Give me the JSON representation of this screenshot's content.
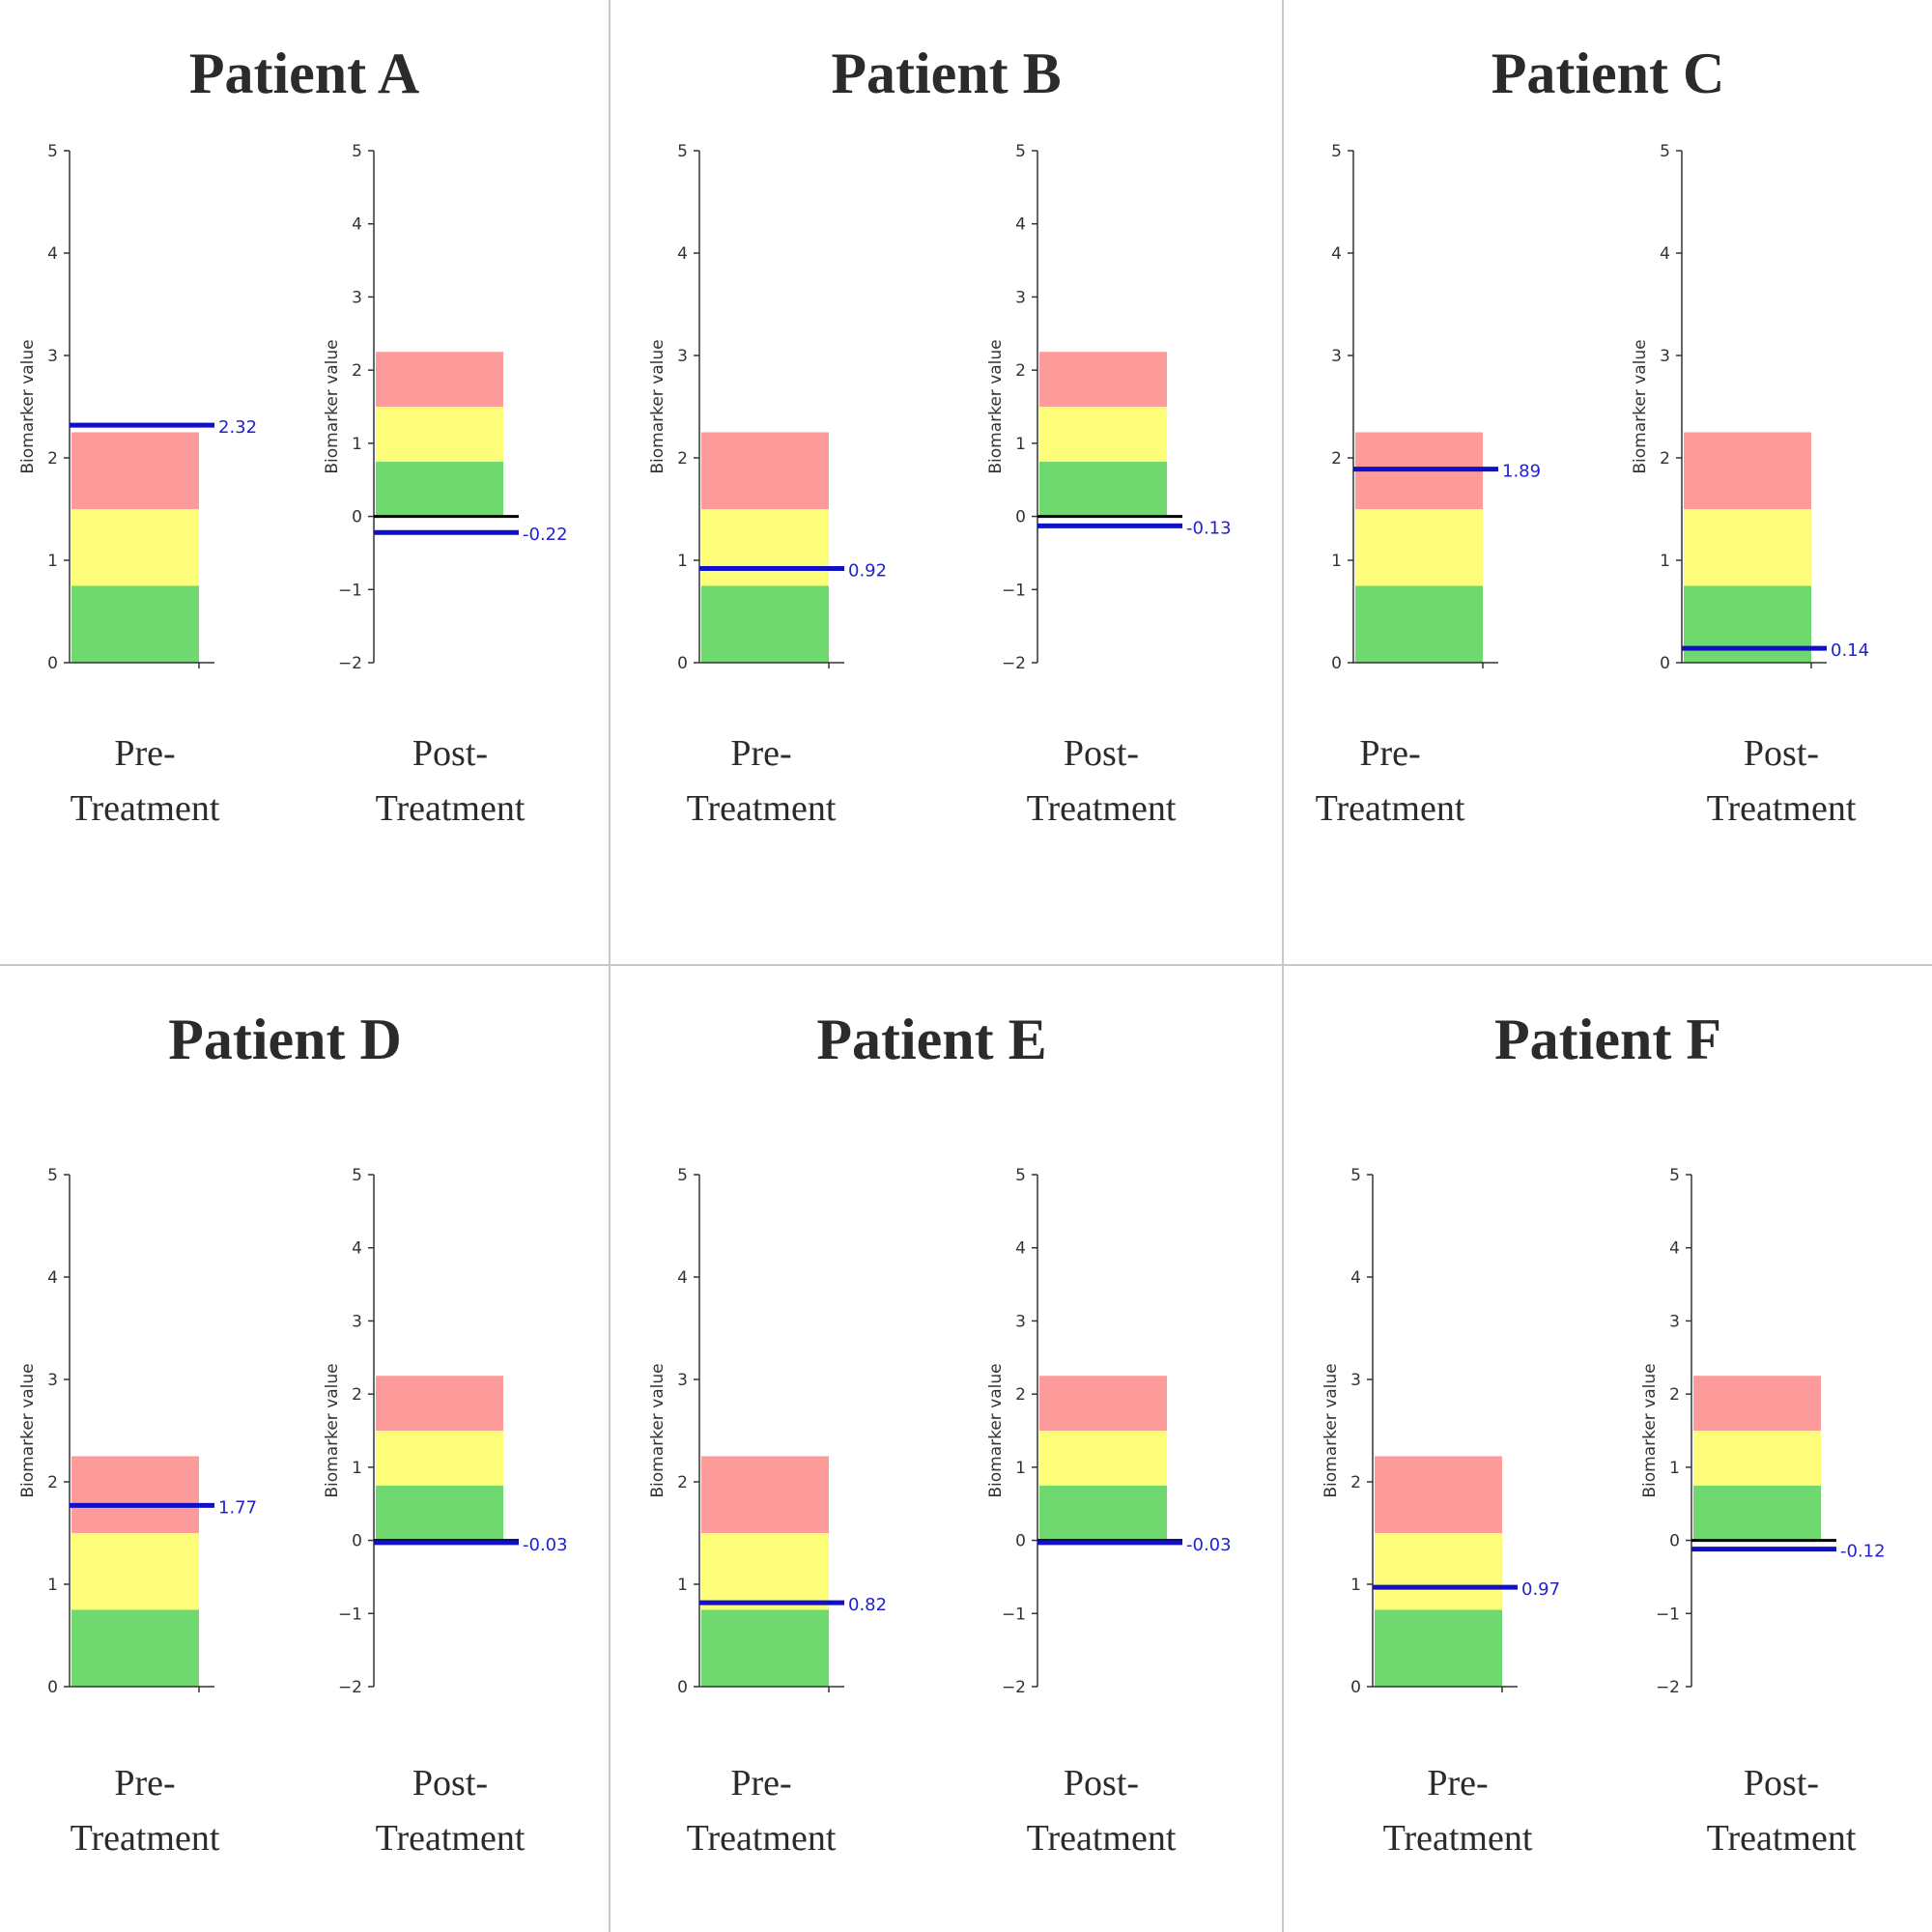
{
  "colors": {
    "green_zone": "#6fd96f",
    "yellow_zone": "#fdfd7a",
    "red_zone": "#fd9a9a",
    "value_line": "#1010c8",
    "value_label": "#2222cc",
    "zero_line": "#000000",
    "axis": "#333333"
  },
  "chart_data": [
    {
      "type": "bar",
      "patient": "Patient A",
      "phase": "Pre-Treatment",
      "category_line1": "Pre-",
      "category_line2": "Treatment",
      "ylabel": "Biomarker value",
      "ylim": [
        0,
        5
      ],
      "yticks": [
        0,
        1,
        2,
        3,
        4,
        5
      ],
      "zones": [
        {
          "color": "green",
          "from": 0,
          "to": 0.75
        },
        {
          "color": "yellow",
          "from": 0.75,
          "to": 1.5
        },
        {
          "color": "red",
          "from": 1.5,
          "to": 2.25
        }
      ],
      "value": 2.32,
      "value_label": "2.32"
    },
    {
      "type": "bar",
      "patient": "Patient A",
      "phase": "Post-Treatment",
      "category_line1": "Post-",
      "category_line2": "Treatment",
      "ylabel": "Biomarker value",
      "ylim": [
        -2,
        5
      ],
      "yticks": [
        -2,
        -1,
        0,
        1,
        2,
        3,
        4,
        5
      ],
      "zones": [
        {
          "color": "green",
          "from": 0,
          "to": 0.75
        },
        {
          "color": "yellow",
          "from": 0.75,
          "to": 1.5
        },
        {
          "color": "red",
          "from": 1.5,
          "to": 2.25
        }
      ],
      "value": -0.22,
      "value_label": "-0.22"
    },
    {
      "type": "bar",
      "patient": "Patient B",
      "phase": "Pre-Treatment",
      "category_line1": "Pre-",
      "category_line2": "Treatment",
      "ylabel": "Biomarker value",
      "ylim": [
        0,
        5
      ],
      "yticks": [
        0,
        1,
        2,
        3,
        4,
        5
      ],
      "zones": [
        {
          "color": "green",
          "from": 0,
          "to": 0.75
        },
        {
          "color": "yellow",
          "from": 0.75,
          "to": 1.5
        },
        {
          "color": "red",
          "from": 1.5,
          "to": 2.25
        }
      ],
      "value": 0.92,
      "value_label": "0.92"
    },
    {
      "type": "bar",
      "patient": "Patient B",
      "phase": "Post-Treatment",
      "category_line1": "Post-",
      "category_line2": "Treatment",
      "ylabel": "Biomarker value",
      "ylim": [
        -2,
        5
      ],
      "yticks": [
        -2,
        -1,
        0,
        1,
        2,
        3,
        4,
        5
      ],
      "zones": [
        {
          "color": "green",
          "from": 0,
          "to": 0.75
        },
        {
          "color": "yellow",
          "from": 0.75,
          "to": 1.5
        },
        {
          "color": "red",
          "from": 1.5,
          "to": 2.25
        }
      ],
      "value": -0.13,
      "value_label": "-0.13"
    },
    {
      "type": "bar",
      "patient": "Patient C",
      "phase": "Pre-Treatment",
      "category_line1": "Pre-",
      "category_line2": "Treatment",
      "ylabel": "",
      "ylim": [
        0,
        5
      ],
      "yticks": [
        0,
        1,
        2,
        3,
        4,
        5
      ],
      "zones": [
        {
          "color": "green",
          "from": 0,
          "to": 0.75
        },
        {
          "color": "yellow",
          "from": 0.75,
          "to": 1.5
        },
        {
          "color": "red",
          "from": 1.5,
          "to": 2.25
        }
      ],
      "value": 1.89,
      "value_label": "1.89"
    },
    {
      "type": "bar",
      "patient": "Patient C",
      "phase": "Post-Treatment",
      "category_line1": "Post-",
      "category_line2": "Treatment",
      "ylabel": "Biomarker value",
      "ylim": [
        0,
        5
      ],
      "yticks": [
        0,
        1,
        2,
        3,
        4,
        5
      ],
      "zones": [
        {
          "color": "green",
          "from": 0,
          "to": 0.75
        },
        {
          "color": "yellow",
          "from": 0.75,
          "to": 1.5
        },
        {
          "color": "red",
          "from": 1.5,
          "to": 2.25
        }
      ],
      "value": 0.14,
      "value_label": "0.14"
    },
    {
      "type": "bar",
      "patient": "Patient D",
      "phase": "Pre-Treatment",
      "category_line1": "Pre-",
      "category_line2": "Treatment",
      "ylabel": "Biomarker value",
      "ylim": [
        0,
        5
      ],
      "yticks": [
        0,
        1,
        2,
        3,
        4,
        5
      ],
      "zones": [
        {
          "color": "green",
          "from": 0,
          "to": 0.75
        },
        {
          "color": "yellow",
          "from": 0.75,
          "to": 1.5
        },
        {
          "color": "red",
          "from": 1.5,
          "to": 2.25
        }
      ],
      "value": 1.77,
      "value_label": "1.77"
    },
    {
      "type": "bar",
      "patient": "Patient D",
      "phase": "Post-Treatment",
      "category_line1": "Post-",
      "category_line2": "Treatment",
      "ylabel": "Biomarker value",
      "ylim": [
        -2,
        5
      ],
      "yticks": [
        -2,
        -1,
        0,
        1,
        2,
        3,
        4,
        5
      ],
      "zones": [
        {
          "color": "green",
          "from": 0,
          "to": 0.75
        },
        {
          "color": "yellow",
          "from": 0.75,
          "to": 1.5
        },
        {
          "color": "red",
          "from": 1.5,
          "to": 2.25
        }
      ],
      "value": -0.03,
      "value_label": "-0.03"
    },
    {
      "type": "bar",
      "patient": "Patient E",
      "phase": "Pre-Treatment",
      "category_line1": "Pre-",
      "category_line2": "Treatment",
      "ylabel": "Biomarker value",
      "ylim": [
        0,
        5
      ],
      "yticks": [
        0,
        1,
        2,
        3,
        4,
        5
      ],
      "zones": [
        {
          "color": "green",
          "from": 0,
          "to": 0.75
        },
        {
          "color": "yellow",
          "from": 0.75,
          "to": 1.5
        },
        {
          "color": "red",
          "from": 1.5,
          "to": 2.25
        }
      ],
      "value": 0.82,
      "value_label": "0.82"
    },
    {
      "type": "bar",
      "patient": "Patient E",
      "phase": "Post-Treatment",
      "category_line1": "Post-",
      "category_line2": "Treatment",
      "ylabel": "Biomarker value",
      "ylim": [
        -2,
        5
      ],
      "yticks": [
        -2,
        -1,
        0,
        1,
        2,
        3,
        4,
        5
      ],
      "zones": [
        {
          "color": "green",
          "from": 0,
          "to": 0.75
        },
        {
          "color": "yellow",
          "from": 0.75,
          "to": 1.5
        },
        {
          "color": "red",
          "from": 1.5,
          "to": 2.25
        }
      ],
      "value": -0.03,
      "value_label": "-0.03"
    },
    {
      "type": "bar",
      "patient": "Patient F",
      "phase": "Pre-Treatment",
      "category_line1": "Pre-",
      "category_line2": "Treatment",
      "ylabel": "Biomarker value",
      "ylim": [
        0,
        5
      ],
      "yticks": [
        0,
        1,
        2,
        3,
        4,
        5
      ],
      "zones": [
        {
          "color": "green",
          "from": 0,
          "to": 0.75
        },
        {
          "color": "yellow",
          "from": 0.75,
          "to": 1.5
        },
        {
          "color": "red",
          "from": 1.5,
          "to": 2.25
        }
      ],
      "value": 0.97,
      "value_label": "0.97"
    },
    {
      "type": "bar",
      "patient": "Patient F",
      "phase": "Post-Treatment",
      "category_line1": "Post-",
      "category_line2": "Treatment",
      "ylabel": "Biomarker value",
      "ylim": [
        -2,
        5
      ],
      "yticks": [
        -2,
        -1,
        0,
        1,
        2,
        3,
        4,
        5
      ],
      "zones": [
        {
          "color": "green",
          "from": 0,
          "to": 0.75
        },
        {
          "color": "yellow",
          "from": 0.75,
          "to": 1.5
        },
        {
          "color": "red",
          "from": 1.5,
          "to": 2.25
        }
      ],
      "value": -0.12,
      "value_label": "-0.12"
    }
  ]
}
